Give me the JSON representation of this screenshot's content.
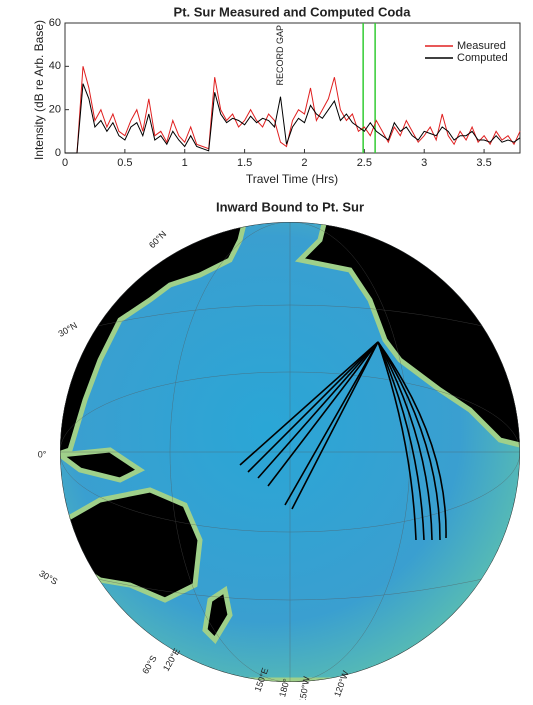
{
  "chart_data": [
    {
      "type": "line",
      "title": "Pt. Sur Measured and Computed Coda",
      "xlabel": "Travel Time (Hrs)",
      "ylabel": "Intensity (dB re Arb. Base)",
      "x": [
        0,
        0.05,
        0.1,
        0.15,
        0.2,
        0.25,
        0.3,
        0.35,
        0.4,
        0.45,
        0.5,
        0.55,
        0.6,
        0.65,
        0.7,
        0.75,
        0.8,
        0.85,
        0.9,
        0.95,
        1.0,
        1.05,
        1.1,
        1.15,
        1.2,
        1.25,
        1.3,
        1.35,
        1.4,
        1.45,
        1.5,
        1.55,
        1.6,
        1.65,
        1.7,
        1.75,
        1.8,
        1.85,
        1.9,
        1.95,
        2.0,
        2.05,
        2.1,
        2.15,
        2.2,
        2.25,
        2.3,
        2.35,
        2.4,
        2.45,
        2.5,
        2.55,
        2.6,
        2.65,
        2.7,
        2.75,
        2.8,
        2.85,
        2.9,
        2.95,
        3.0,
        3.05,
        3.1,
        3.15,
        3.2,
        3.25,
        3.3,
        3.35,
        3.4,
        3.45,
        3.5,
        3.55,
        3.6,
        3.65,
        3.7,
        3.75,
        3.8
      ],
      "series": [
        {
          "name": "Measured",
          "color": "#e02020",
          "values": [
            0,
            0,
            0,
            40,
            30,
            15,
            20,
            12,
            18,
            10,
            8,
            15,
            20,
            10,
            25,
            8,
            10,
            5,
            15,
            8,
            5,
            12,
            4,
            3,
            2,
            35,
            20,
            15,
            18,
            12,
            15,
            20,
            15,
            12,
            18,
            15,
            5,
            3,
            15,
            20,
            18,
            30,
            15,
            20,
            25,
            35,
            20,
            15,
            18,
            10,
            12,
            8,
            15,
            10,
            5,
            12,
            8,
            15,
            10,
            5,
            8,
            12,
            6,
            18,
            8,
            4,
            10,
            6,
            12,
            5,
            8,
            4,
            10,
            6,
            8,
            4,
            10
          ]
        },
        {
          "name": "Computed",
          "color": "#000000",
          "values": [
            0,
            0,
            0,
            32,
            25,
            12,
            15,
            10,
            14,
            8,
            6,
            12,
            14,
            8,
            18,
            6,
            8,
            4,
            10,
            6,
            3,
            8,
            3,
            2,
            1,
            28,
            18,
            14,
            16,
            15,
            13,
            17,
            14,
            16,
            15,
            12,
            26,
            4,
            12,
            16,
            14,
            22,
            18,
            16,
            20,
            24,
            15,
            18,
            14,
            12,
            10,
            14,
            10,
            8,
            6,
            14,
            10,
            12,
            8,
            6,
            10,
            9,
            8,
            12,
            10,
            6,
            8,
            8,
            10,
            6,
            6,
            5,
            8,
            5,
            6,
            5,
            7
          ]
        }
      ],
      "vlines": {
        "color": "#33cc33",
        "x": [
          2.49,
          2.59
        ]
      },
      "annotations": [
        {
          "text": "RECORD GAP",
          "x": 1.8
        }
      ],
      "xlim": [
        0,
        3.8
      ],
      "xticks": [
        0,
        0.5,
        1,
        1.5,
        2,
        2.5,
        3,
        3.5
      ],
      "ylim": [
        0,
        60
      ],
      "yticks": [
        0,
        20,
        40,
        60
      ],
      "legend": "northeast"
    },
    {
      "type": "map",
      "title": "Inward Bound to Pt. Sur",
      "labels": [
        "60°N",
        "30°N",
        "0°",
        "30°S",
        "60°S",
        "120°E",
        "150°E",
        "180°",
        "150°W",
        "120°W"
      ]
    }
  ]
}
